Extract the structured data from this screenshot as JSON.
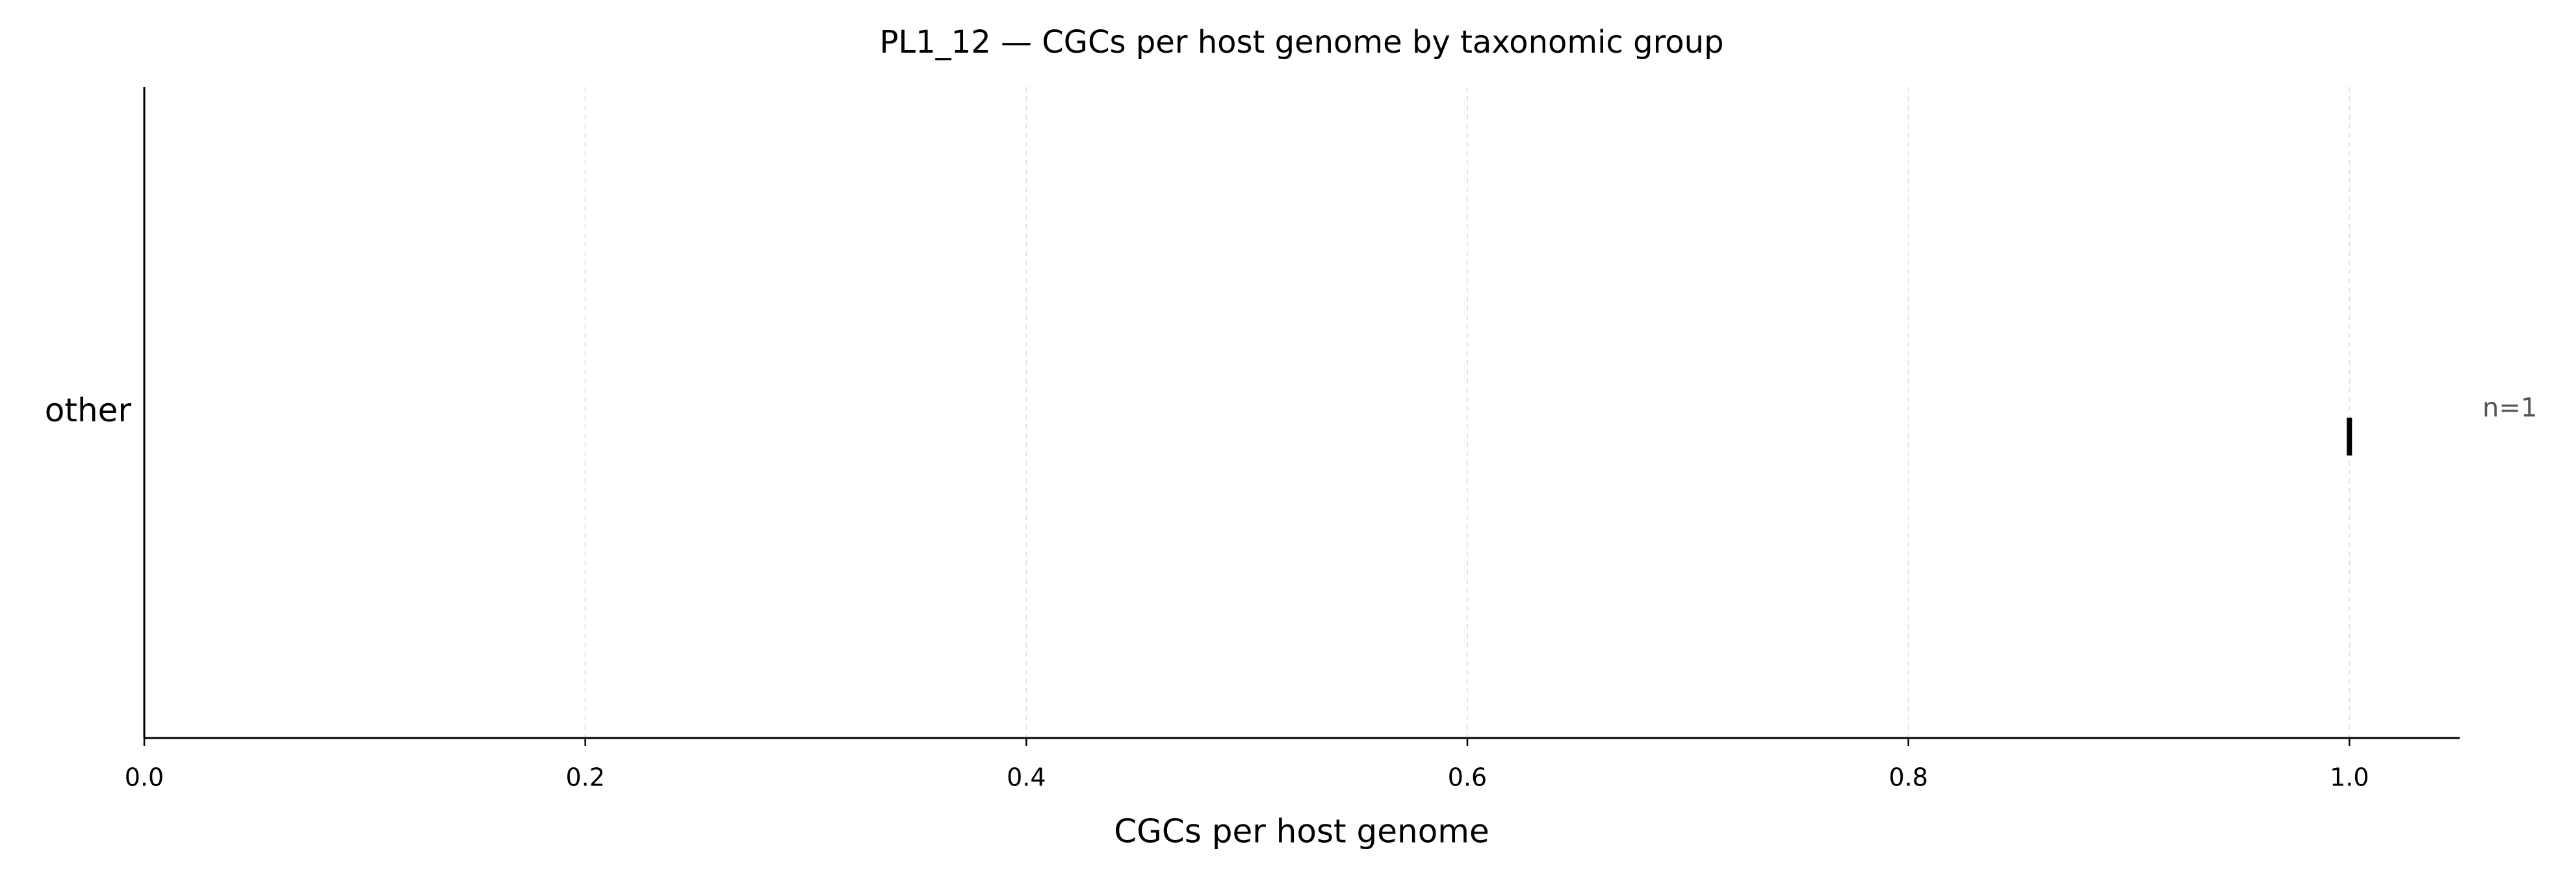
{
  "chart_data": {
    "type": "strip",
    "title": "PL1_12 — CGCs per host genome by taxonomic group",
    "x_label": "CGCs per host genome",
    "categories": [
      "other"
    ],
    "values": [
      1
    ],
    "annotations": [
      "n=1"
    ],
    "color": "#000000",
    "xlim": [
      0,
      1.05
    ],
    "xticks": [
      {
        "value": 0,
        "label": "0.0"
      },
      {
        "value": 0.2,
        "label": "0.2"
      },
      {
        "value": 0.4,
        "label": "0.4"
      },
      {
        "value": 0.6,
        "label": "0.6"
      },
      {
        "value": 0.8,
        "label": "0.8"
      },
      {
        "value": 1,
        "label": "1.0"
      }
    ],
    "grid": true
  }
}
